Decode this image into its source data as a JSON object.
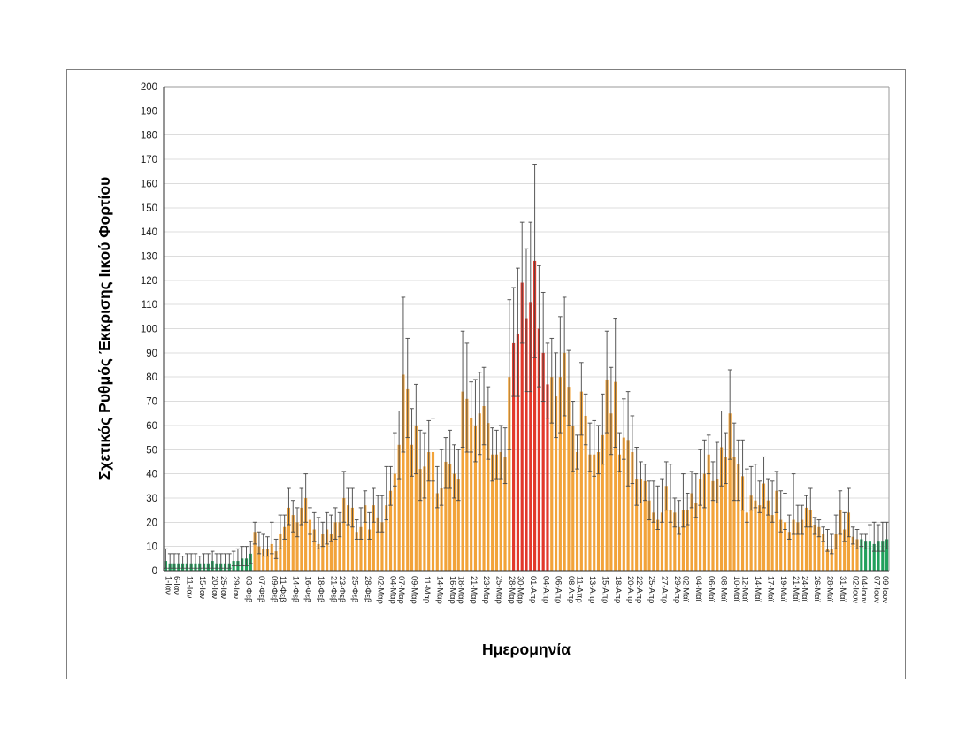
{
  "figure": {
    "background": "#ffffff",
    "border_color": "#7f7f7f"
  },
  "chart_data": {
    "type": "bar",
    "title": "",
    "xlabel": "Ημερομηνία",
    "ylabel": "Σχετικός Ρυθμός Έκκρισης Ιικού Φορτίου",
    "ylim": [
      0,
      200
    ],
    "ytick_step": 10,
    "grid": true,
    "legend": "none",
    "error_bars": true,
    "colors": {
      "orange": "#F2A33A",
      "red": "#E2382B",
      "green": "#22A05C",
      "error": "#5a5a5a",
      "grid": "#dcdcdc",
      "axis": "#2b2b2b",
      "plot_border": "#9a9a9a",
      "text": "#1f1f1f"
    },
    "x_tick_labels": [
      "1-Ιαν",
      "6-Ιαν",
      "11-Ιαν",
      "15-Ιαν",
      "20-Ιαν",
      "25-Ιαν",
      "29-Ιαν",
      "03-Φεβ",
      "07-Φεβ",
      "09-Φεβ",
      "11-Φεβ",
      "14-Φεβ",
      "16-Φεβ",
      "18-Φεβ",
      "21-Φεβ",
      "23-Φεβ",
      "25-Φεβ",
      "28-Φεβ",
      "02-Μαρ",
      "04-Μαρ",
      "07-Μαρ",
      "09-Μαρ",
      "11-Μαρ",
      "14-Μαρ",
      "16-Μαρ",
      "18-Μαρ",
      "21-Μαρ",
      "23-Μαρ",
      "25-Μαρ",
      "28-Μαρ",
      "30-Μαρ",
      "01-Απρ",
      "04-Απρ",
      "06-Απρ",
      "08-Απρ",
      "11-Απρ",
      "13-Απρ",
      "15-Απρ",
      "18-Απρ",
      "20-Απρ",
      "22-Απρ",
      "25-Απρ",
      "27-Απρ",
      "29-Απρ",
      "02-Μαϊ",
      "04-Μαϊ",
      "06-Μαϊ",
      "08-Μαϊ",
      "10-Μαϊ",
      "12-Μαϊ",
      "14-Μαϊ",
      "17-Μαϊ",
      "19-Μαϊ",
      "21-Μαϊ",
      "24-Μαϊ",
      "26-Μαϊ",
      "28-Μαϊ",
      "31-Μαϊ",
      "02-Ιουν",
      "04-Ιουν",
      "07-Ιουν",
      "09-Ιουν"
    ],
    "bars_note": "each bar = [value, error_low, error_high, color g|o|r]",
    "bars": [
      [
        4,
        1,
        9,
        "g"
      ],
      [
        3,
        1,
        7,
        "g"
      ],
      [
        3,
        1,
        7,
        "g"
      ],
      [
        3,
        1,
        7,
        "g"
      ],
      [
        3,
        1,
        6,
        "g"
      ],
      [
        3,
        1,
        7,
        "g"
      ],
      [
        3,
        1,
        7,
        "g"
      ],
      [
        3,
        1,
        7,
        "g"
      ],
      [
        3,
        1,
        6,
        "g"
      ],
      [
        3,
        1,
        7,
        "g"
      ],
      [
        3,
        1,
        7,
        "g"
      ],
      [
        4,
        1,
        8,
        "g"
      ],
      [
        3,
        1,
        7,
        "g"
      ],
      [
        3,
        1,
        7,
        "g"
      ],
      [
        3,
        1,
        7,
        "g"
      ],
      [
        3,
        1,
        7,
        "g"
      ],
      [
        4,
        2,
        8,
        "g"
      ],
      [
        4,
        2,
        9,
        "g"
      ],
      [
        5,
        2,
        10,
        "g"
      ],
      [
        5,
        2,
        10,
        "g"
      ],
      [
        7,
        3,
        12,
        "g"
      ],
      [
        16,
        11,
        20,
        "o"
      ],
      [
        10,
        7,
        16,
        "o"
      ],
      [
        9,
        6,
        15,
        "o"
      ],
      [
        9,
        6,
        14,
        "o"
      ],
      [
        11,
        7,
        20,
        "o"
      ],
      [
        8,
        5,
        13,
        "o"
      ],
      [
        15,
        9,
        23,
        "o"
      ],
      [
        18,
        13,
        23,
        "o"
      ],
      [
        26,
        19,
        34,
        "o"
      ],
      [
        23,
        16,
        29,
        "o"
      ],
      [
        20,
        14,
        26,
        "o"
      ],
      [
        26,
        19,
        34,
        "o"
      ],
      [
        30,
        20,
        40,
        "o"
      ],
      [
        21,
        15,
        26,
        "o"
      ],
      [
        17,
        12,
        24,
        "o"
      ],
      [
        11,
        9,
        22,
        "o"
      ],
      [
        15,
        10,
        20,
        "o"
      ],
      [
        17,
        11,
        24,
        "o"
      ],
      [
        15,
        12,
        23,
        "o"
      ],
      [
        20,
        13,
        26,
        "o"
      ],
      [
        20,
        14,
        24,
        "o"
      ],
      [
        30,
        20,
        41,
        "o"
      ],
      [
        27,
        19,
        34,
        "o"
      ],
      [
        26,
        18,
        34,
        "o"
      ],
      [
        16,
        13,
        21,
        "o"
      ],
      [
        18,
        13,
        26,
        "o"
      ],
      [
        27,
        20,
        33,
        "o"
      ],
      [
        17,
        13,
        24,
        "o"
      ],
      [
        27,
        20,
        34,
        "o"
      ],
      [
        22,
        16,
        31,
        "o"
      ],
      [
        20,
        16,
        31,
        "o"
      ],
      [
        27,
        21,
        43,
        "o"
      ],
      [
        33,
        27,
        43,
        "o"
      ],
      [
        40,
        35,
        57,
        "o"
      ],
      [
        52,
        38,
        66,
        "o"
      ],
      [
        81,
        49,
        113,
        "o"
      ],
      [
        75,
        55,
        96,
        "o"
      ],
      [
        52,
        39,
        67,
        "o"
      ],
      [
        60,
        40,
        77,
        "o"
      ],
      [
        42,
        29,
        58,
        "o"
      ],
      [
        43,
        30,
        57,
        "o"
      ],
      [
        49,
        37,
        62,
        "o"
      ],
      [
        49,
        37,
        63,
        "o"
      ],
      [
        32,
        26,
        43,
        "o"
      ],
      [
        34,
        27,
        50,
        "o"
      ],
      [
        45,
        34,
        55,
        "o"
      ],
      [
        44,
        34,
        58,
        "o"
      ],
      [
        40,
        30,
        52,
        "o"
      ],
      [
        38,
        29,
        50,
        "o"
      ],
      [
        74,
        51,
        99,
        "o"
      ],
      [
        71,
        49,
        94,
        "o"
      ],
      [
        63,
        49,
        78,
        "o"
      ],
      [
        60,
        45,
        79,
        "o"
      ],
      [
        65,
        48,
        82,
        "o"
      ],
      [
        68,
        52,
        84,
        "o"
      ],
      [
        61,
        46,
        76,
        "o"
      ],
      [
        48,
        37,
        59,
        "o"
      ],
      [
        48,
        38,
        58,
        "o"
      ],
      [
        49,
        38,
        60,
        "o"
      ],
      [
        47,
        36,
        59,
        "o"
      ],
      [
        80,
        50,
        112,
        "o"
      ],
      [
        94,
        72,
        117,
        "r"
      ],
      [
        98,
        72,
        125,
        "r"
      ],
      [
        119,
        94,
        144,
        "r"
      ],
      [
        104,
        74,
        133,
        "r"
      ],
      [
        111,
        74,
        144,
        "r"
      ],
      [
        128,
        88,
        168,
        "r"
      ],
      [
        100,
        76,
        126,
        "r"
      ],
      [
        90,
        70,
        115,
        "r"
      ],
      [
        77,
        63,
        94,
        "r"
      ],
      [
        80,
        61,
        96,
        "o"
      ],
      [
        72,
        55,
        90,
        "o"
      ],
      [
        80,
        57,
        105,
        "o"
      ],
      [
        90,
        64,
        113,
        "o"
      ],
      [
        76,
        60,
        91,
        "o"
      ],
      [
        60,
        41,
        70,
        "o"
      ],
      [
        49,
        42,
        56,
        "o"
      ],
      [
        74,
        56,
        86,
        "o"
      ],
      [
        64,
        52,
        73,
        "o"
      ],
      [
        48,
        41,
        61,
        "o"
      ],
      [
        48,
        39,
        62,
        "o"
      ],
      [
        49,
        40,
        60,
        "o"
      ],
      [
        56,
        44,
        73,
        "o"
      ],
      [
        79,
        57,
        99,
        "o"
      ],
      [
        65,
        48,
        84,
        "o"
      ],
      [
        78,
        51,
        104,
        "o"
      ],
      [
        48,
        41,
        57,
        "o"
      ],
      [
        55,
        46,
        71,
        "o"
      ],
      [
        54,
        35,
        74,
        "o"
      ],
      [
        49,
        36,
        64,
        "o"
      ],
      [
        38,
        27,
        51,
        "o"
      ],
      [
        38,
        28,
        45,
        "o"
      ],
      [
        37,
        29,
        44,
        "o"
      ],
      [
        29,
        21,
        37,
        "o"
      ],
      [
        24,
        20,
        37,
        "o"
      ],
      [
        21,
        17,
        35,
        "o"
      ],
      [
        24,
        20,
        38,
        "o"
      ],
      [
        35,
        25,
        45,
        "o"
      ],
      [
        25,
        20,
        44,
        "o"
      ],
      [
        24,
        18,
        30,
        "o"
      ],
      [
        18,
        15,
        29,
        "o"
      ],
      [
        25,
        18,
        40,
        "o"
      ],
      [
        25,
        19,
        32,
        "o"
      ],
      [
        32,
        26,
        41,
        "o"
      ],
      [
        28,
        22,
        40,
        "o"
      ],
      [
        38,
        27,
        50,
        "o"
      ],
      [
        40,
        26,
        54,
        "o"
      ],
      [
        48,
        40,
        56,
        "o"
      ],
      [
        37,
        29,
        45,
        "o"
      ],
      [
        38,
        28,
        53,
        "o"
      ],
      [
        51,
        35,
        66,
        "o"
      ],
      [
        47,
        36,
        57,
        "o"
      ],
      [
        65,
        46,
        83,
        "o"
      ],
      [
        47,
        29,
        61,
        "o"
      ],
      [
        44,
        29,
        54,
        "o"
      ],
      [
        39,
        25,
        54,
        "o"
      ],
      [
        24,
        20,
        42,
        "o"
      ],
      [
        31,
        25,
        43,
        "o"
      ],
      [
        29,
        26,
        44,
        "o"
      ],
      [
        27,
        24,
        37,
        "o"
      ],
      [
        36,
        26,
        47,
        "o"
      ],
      [
        29,
        23,
        38,
        "o"
      ],
      [
        23,
        20,
        37,
        "o"
      ],
      [
        33,
        24,
        41,
        "o"
      ],
      [
        21,
        16,
        33,
        "o"
      ],
      [
        20,
        17,
        32,
        "o"
      ],
      [
        16,
        13,
        23,
        "o"
      ],
      [
        21,
        15,
        40,
        "o"
      ],
      [
        20,
        15,
        27,
        "o"
      ],
      [
        21,
        15,
        27,
        "o"
      ],
      [
        26,
        18,
        31,
        "o"
      ],
      [
        25,
        18,
        34,
        "o"
      ],
      [
        19,
        15,
        22,
        "o"
      ],
      [
        18,
        14,
        21,
        "o"
      ],
      [
        15,
        12,
        18,
        "o"
      ],
      [
        9,
        8,
        17,
        "o"
      ],
      [
        9,
        7,
        15,
        "o"
      ],
      [
        15,
        9,
        23,
        "o"
      ],
      [
        25,
        15,
        33,
        "o"
      ],
      [
        17,
        12,
        24,
        "o"
      ],
      [
        24,
        14,
        34,
        "o"
      ],
      [
        14,
        11,
        18,
        "o"
      ],
      [
        13,
        9,
        17,
        "o"
      ],
      [
        13,
        10,
        15,
        "g"
      ],
      [
        12,
        9,
        15,
        "g"
      ],
      [
        12,
        9,
        19,
        "g"
      ],
      [
        11,
        8,
        20,
        "g"
      ],
      [
        12,
        8,
        19,
        "g"
      ],
      [
        12,
        8,
        20,
        "g"
      ],
      [
        13,
        9,
        20,
        "g"
      ]
    ]
  }
}
